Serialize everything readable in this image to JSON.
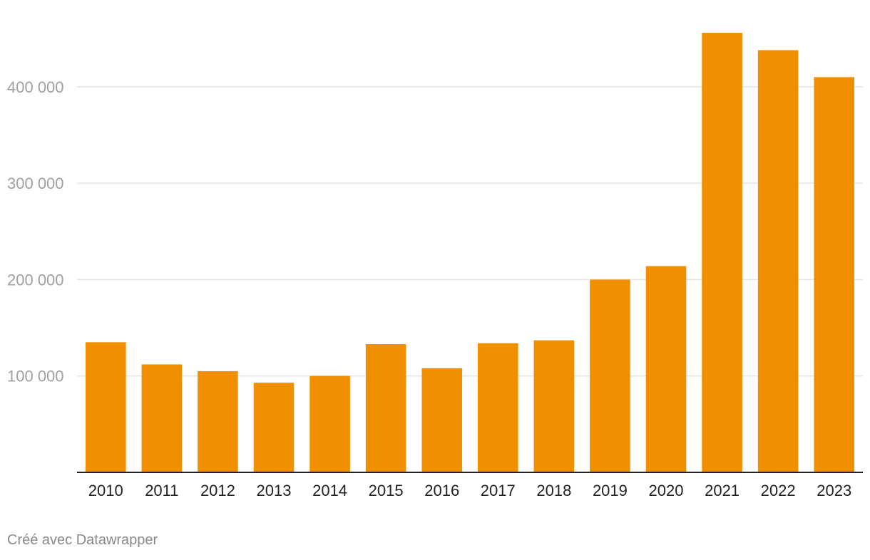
{
  "chart_data": {
    "type": "bar",
    "title": "",
    "xlabel": "",
    "ylabel": "",
    "categories": [
      "2010",
      "2011",
      "2012",
      "2013",
      "2014",
      "2015",
      "2016",
      "2017",
      "2018",
      "2019",
      "2020",
      "2021",
      "2022",
      "2023"
    ],
    "values": [
      135000,
      112000,
      105000,
      93000,
      100000,
      133000,
      108000,
      134000,
      137000,
      200000,
      214000,
      456000,
      438000,
      410000
    ],
    "ylim": [
      0,
      460000
    ],
    "yticks": [
      100000,
      200000,
      300000,
      400000
    ],
    "ytick_labels": [
      "100 000",
      "200 000",
      "300 000",
      "400 000"
    ],
    "grid": true,
    "bar_color": "#f09000",
    "grid_color": "#e3e3e3",
    "axis_color": "#222222"
  },
  "footer": {
    "credit": "Créé avec Datawrapper"
  }
}
